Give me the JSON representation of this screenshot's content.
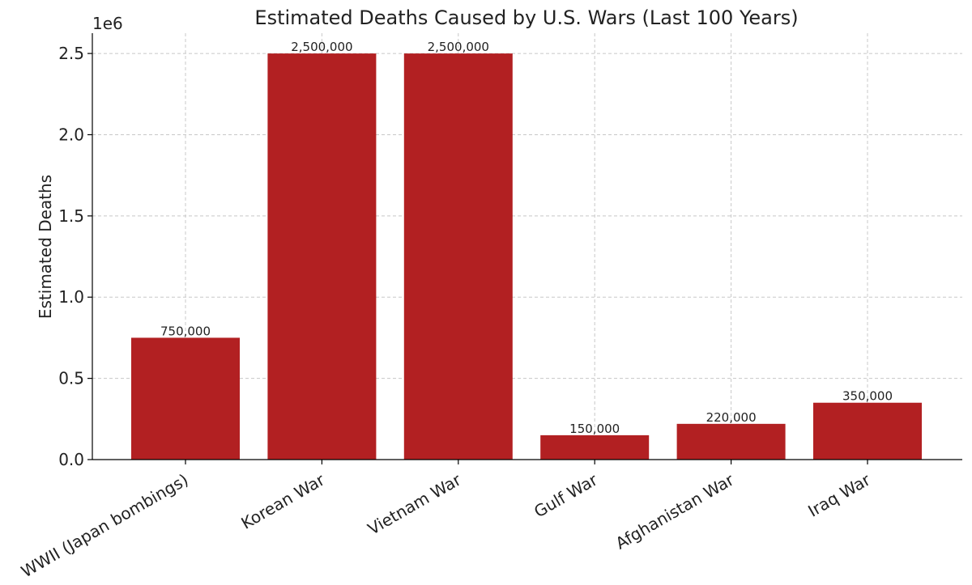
{
  "chart_data": {
    "type": "bar",
    "title": "Estimated Deaths Caused by U.S. Wars (Last 100 Years)",
    "xlabel": "",
    "ylabel": "Estimated Deaths",
    "y_offset_label": "1e6",
    "categories": [
      "WWII (Japan bombings)",
      "Korean War",
      "Vietnam War",
      "Gulf War",
      "Afghanistan War",
      "Iraq War"
    ],
    "values": [
      750000,
      2500000,
      2500000,
      150000,
      220000,
      350000
    ],
    "value_labels": [
      "750,000",
      "2,500,000",
      "2,500,000",
      "150,000",
      "220,000",
      "350,000"
    ],
    "ylim": [
      0,
      2625000
    ],
    "yticks": [
      0,
      500000,
      1000000,
      1500000,
      2000000,
      2500000
    ],
    "ytick_labels": [
      "0.0",
      "0.5",
      "1.0",
      "1.5",
      "2.0",
      "2.5"
    ],
    "grid": true,
    "bar_color": "#b22022"
  }
}
